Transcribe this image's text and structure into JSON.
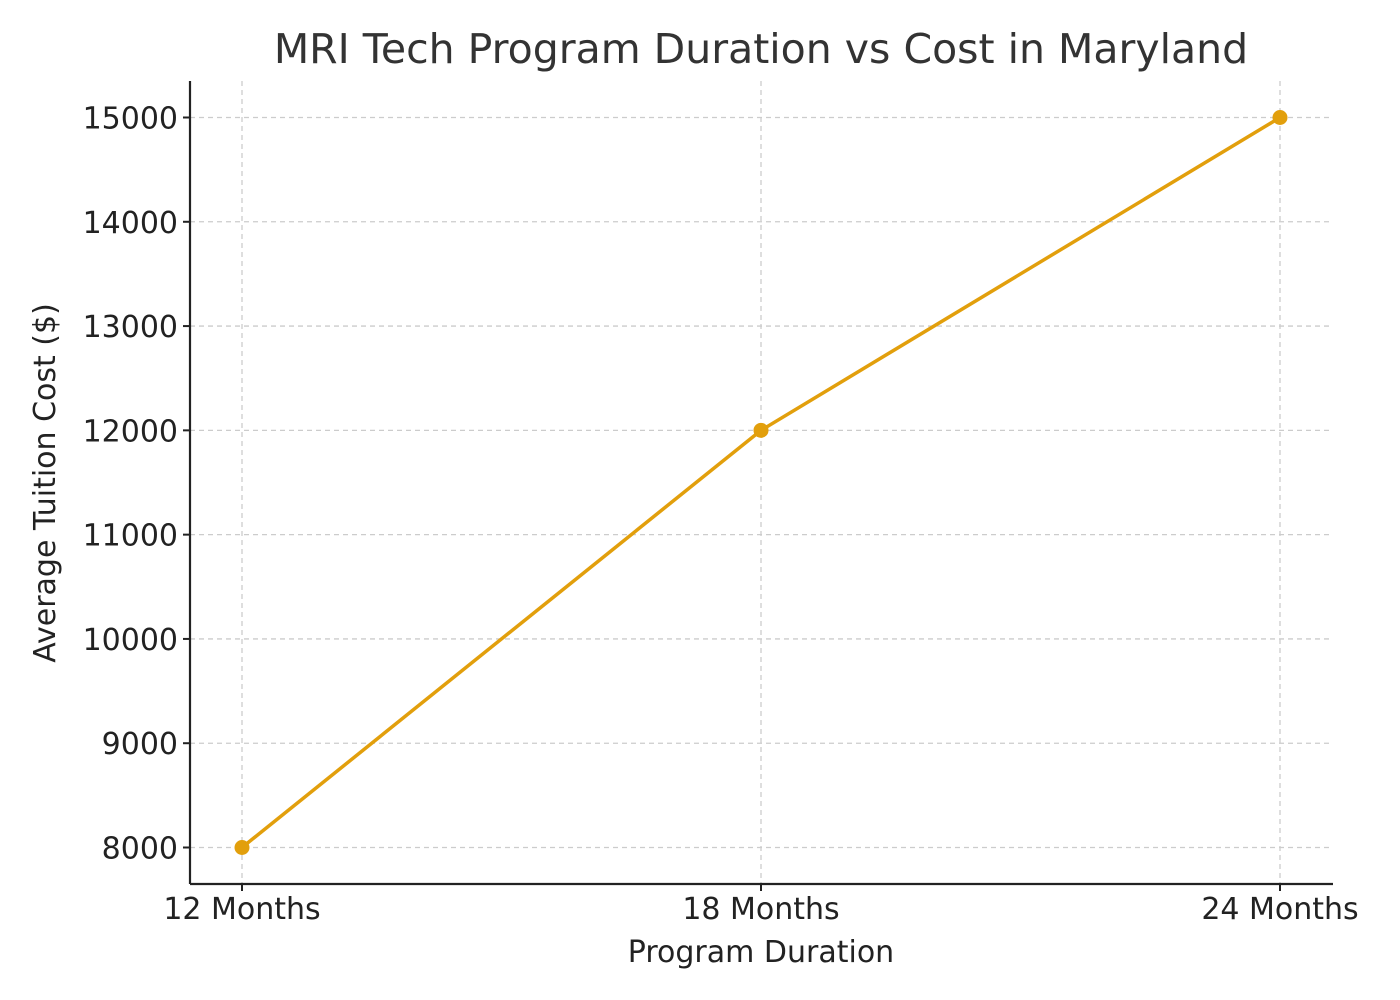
{
  "chart_data": {
    "type": "line",
    "title": "MRI Tech Program Duration vs Cost in Maryland",
    "xlabel": "Program Duration",
    "ylabel": "Average Tuition Cost ($)",
    "categories": [
      "12 Months",
      "18 Months",
      "24 Months"
    ],
    "series": [
      {
        "values": [
          8000,
          12000,
          15000
        ]
      }
    ],
    "yticks": [
      8000,
      9000,
      10000,
      11000,
      12000,
      13000,
      14000,
      15000
    ],
    "ylim": [
      7650,
      15350
    ],
    "grid": true,
    "legend": "none",
    "colors": {
      "series": "#e29f0c",
      "axis": "#222222",
      "grid": "#cccccc",
      "title": "#333333"
    }
  }
}
